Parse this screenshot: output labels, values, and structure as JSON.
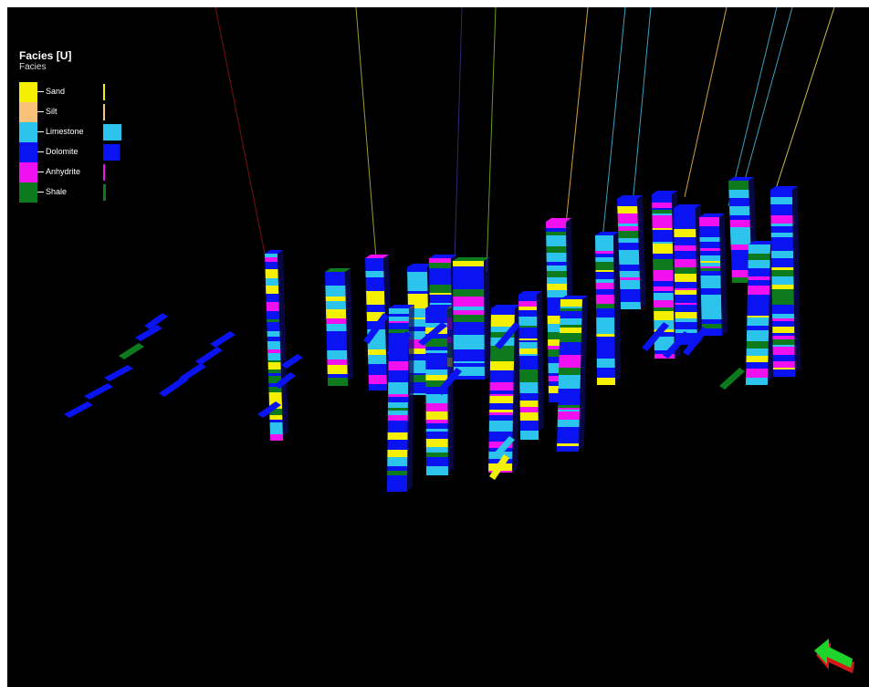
{
  "legend": {
    "title": "Facies [U]",
    "subtitle": "Facies",
    "entries": [
      {
        "label": "Sand",
        "color": "#f5f000",
        "share": 0.04
      },
      {
        "label": "Silt",
        "color": "#f8c27a",
        "share": 0.01
      },
      {
        "label": "Limestone",
        "color": "#2cc4ec",
        "share": 0.45
      },
      {
        "label": "Dolomite",
        "color": "#0a14f2",
        "share": 0.42
      },
      {
        "label": "Anhydrite",
        "color": "#f010f0",
        "share": 0.01
      },
      {
        "label": "Shale",
        "color": "#0e7a1e",
        "share": 0.07
      }
    ]
  },
  "navigation_icon": "orientation-arrow-icon",
  "colors": {
    "background": "#000000",
    "arrow_main": "#1ed32a",
    "arrow_shadow": "#d21818"
  }
}
